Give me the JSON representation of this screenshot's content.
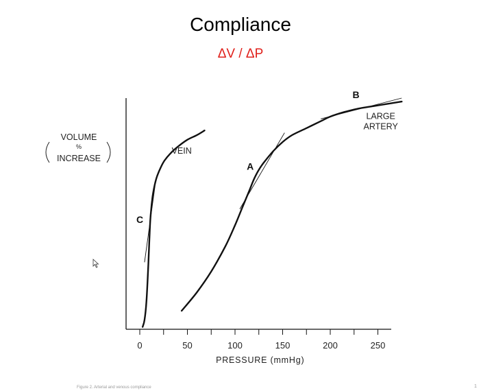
{
  "slide": {
    "title": "Compliance",
    "formula": "ΔV / ΔP",
    "formula_color": "#e0201b",
    "caption": "Figure 2. Arterial and venous compliance",
    "page_number": "1"
  },
  "chart_data": {
    "type": "line",
    "title": "",
    "xlabel": "PRESSURE (mmHg)",
    "ylabel_lines": [
      "VOLUME",
      "%",
      "INCREASE"
    ],
    "xlim": [
      -15,
      270
    ],
    "ylim": [
      0,
      100
    ],
    "xticks": [
      0,
      50,
      100,
      150,
      200,
      250
    ],
    "xtick_labels": [
      "0",
      "50",
      "100",
      "150",
      "200",
      "250"
    ],
    "grid": false,
    "series": [
      {
        "name": "VEIN",
        "x": [
          3,
          5,
          7,
          9,
          10,
          11,
          12,
          13,
          14,
          16,
          18,
          22,
          26,
          32,
          40,
          50,
          60,
          68
        ],
        "y": [
          1,
          4,
          12,
          28,
          38,
          47,
          52,
          56,
          59,
          63,
          66,
          70,
          73,
          76,
          79,
          82,
          84,
          86
        ]
      },
      {
        "name": "LARGE ARTERY",
        "x": [
          44,
          60,
          75,
          90,
          100,
          108,
          115,
          120,
          125,
          130,
          140,
          150,
          160,
          175,
          190,
          200,
          215,
          230,
          245,
          260,
          275
        ],
        "y": [
          8,
          16,
          25,
          36,
          45,
          53,
          60,
          65,
          69,
          72,
          77,
          81,
          84,
          87,
          90,
          92,
          94,
          95.5,
          96.5,
          97.5,
          98.5
        ]
      }
    ],
    "tangents": [
      {
        "label": "C",
        "x1": 5,
        "y1": 29,
        "x2": 16,
        "y2": 62
      },
      {
        "label": "A",
        "x1": 105,
        "y1": 52,
        "x2": 152,
        "y2": 85
      },
      {
        "label": "B",
        "x1": 190,
        "y1": 91,
        "x2": 275,
        "y2": 100
      }
    ],
    "point_labels": [
      {
        "text": "C",
        "x": 0,
        "y": 46
      },
      {
        "text": "A",
        "x": 116,
        "y": 69
      },
      {
        "text": "B",
        "x": 227,
        "y": 100
      }
    ],
    "curve_labels": [
      {
        "lines": [
          "VEIN"
        ],
        "x": 44,
        "y": 76
      },
      {
        "lines": [
          "LARGE",
          "ARTERY"
        ],
        "x": 253,
        "y": 91
      }
    ]
  }
}
